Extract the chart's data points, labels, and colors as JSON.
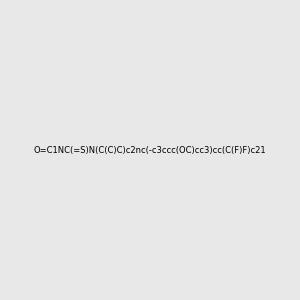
{
  "smiles": "O=C1NC(=S)N(C(C)C)c2nc(-c3ccc(OC)cc3)cc(C(F)F)c21",
  "title": "",
  "bg_color": "#e8e8e8",
  "atom_colors": {
    "N": "#0000ff",
    "O": "#ff0000",
    "S": "#cccc00",
    "F": "#ff44cc"
  },
  "figsize": [
    3.0,
    3.0
  ],
  "dpi": 100
}
